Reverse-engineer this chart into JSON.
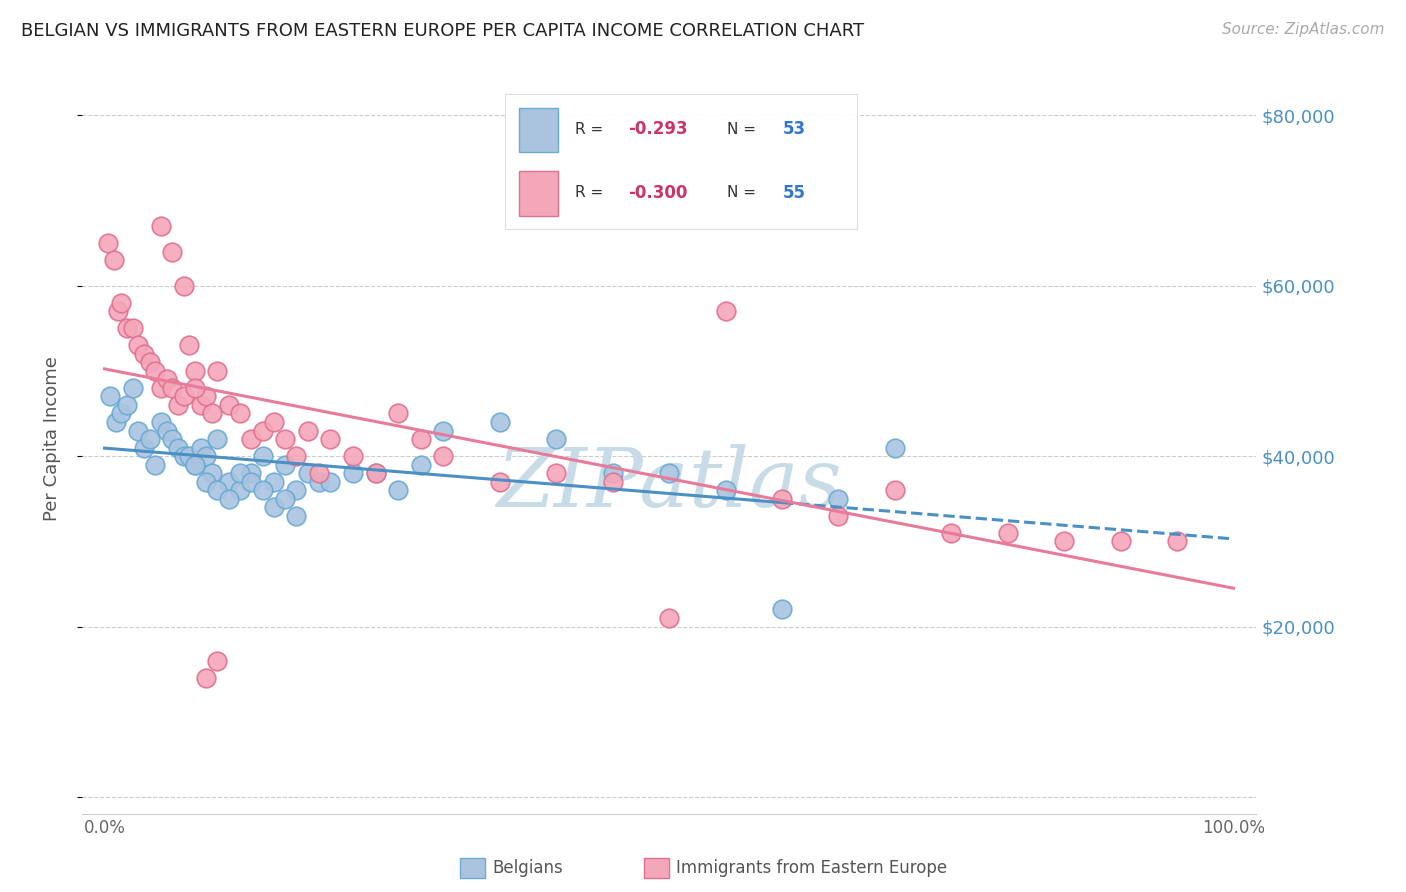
{
  "title": "BELGIAN VS IMMIGRANTS FROM EASTERN EUROPE PER CAPITA INCOME CORRELATION CHART",
  "source": "Source: ZipAtlas.com",
  "ylabel": "Per Capita Income",
  "belgians_R": -0.293,
  "belgians_N": 53,
  "immigrants_R": -0.3,
  "immigrants_N": 55,
  "blue_color": "#aac4e0",
  "pink_color": "#f4a7b9",
  "blue_line_color": "#4a90c4",
  "pink_line_color": "#e87a9a",
  "watermark_color": "#c8dce8",
  "background_color": "#ffffff",
  "belgians_x": [
    0.5,
    1.0,
    1.5,
    2.0,
    2.5,
    3.0,
    3.5,
    4.0,
    4.5,
    5.0,
    5.5,
    6.0,
    6.5,
    7.0,
    7.5,
    8.0,
    8.5,
    9.0,
    9.5,
    10.0,
    11.0,
    12.0,
    13.0,
    14.0,
    15.0,
    16.0,
    17.0,
    18.0,
    19.0,
    20.0,
    22.0,
    24.0,
    26.0,
    28.0,
    30.0,
    35.0,
    40.0,
    45.0,
    50.0,
    55.0,
    60.0,
    65.0,
    70.0,
    8.0,
    9.0,
    10.0,
    11.0,
    12.0,
    13.0,
    14.0,
    15.0,
    16.0,
    17.0
  ],
  "belgians_y": [
    47000,
    44000,
    45000,
    46000,
    48000,
    43000,
    41000,
    42000,
    39000,
    44000,
    43000,
    42000,
    41000,
    40000,
    40000,
    39000,
    41000,
    40000,
    38000,
    42000,
    37000,
    36000,
    38000,
    40000,
    37000,
    39000,
    36000,
    38000,
    37000,
    37000,
    38000,
    38000,
    36000,
    39000,
    43000,
    44000,
    42000,
    38000,
    38000,
    36000,
    22000,
    35000,
    41000,
    39000,
    37000,
    36000,
    35000,
    38000,
    37000,
    36000,
    34000,
    35000,
    33000
  ],
  "immigrants_x": [
    0.3,
    0.8,
    1.2,
    1.5,
    2.0,
    2.5,
    3.0,
    3.5,
    4.0,
    4.5,
    5.0,
    5.5,
    6.0,
    6.5,
    7.0,
    7.5,
    8.0,
    8.5,
    9.0,
    9.5,
    10.0,
    11.0,
    12.0,
    13.0,
    14.0,
    15.0,
    16.0,
    17.0,
    18.0,
    19.0,
    20.0,
    22.0,
    24.0,
    26.0,
    28.0,
    30.0,
    35.0,
    40.0,
    45.0,
    50.0,
    55.0,
    60.0,
    65.0,
    70.0,
    75.0,
    80.0,
    85.0,
    90.0,
    95.0,
    5.0,
    6.0,
    7.0,
    8.0,
    9.0,
    10.0
  ],
  "immigrants_y": [
    65000,
    63000,
    57000,
    58000,
    55000,
    55000,
    53000,
    52000,
    51000,
    50000,
    48000,
    49000,
    48000,
    46000,
    47000,
    53000,
    50000,
    46000,
    47000,
    45000,
    50000,
    46000,
    45000,
    42000,
    43000,
    44000,
    42000,
    40000,
    43000,
    38000,
    42000,
    40000,
    38000,
    45000,
    42000,
    40000,
    37000,
    38000,
    37000,
    21000,
    57000,
    35000,
    33000,
    36000,
    31000,
    31000,
    30000,
    30000,
    30000,
    67000,
    64000,
    60000,
    48000,
    14000,
    16000
  ]
}
